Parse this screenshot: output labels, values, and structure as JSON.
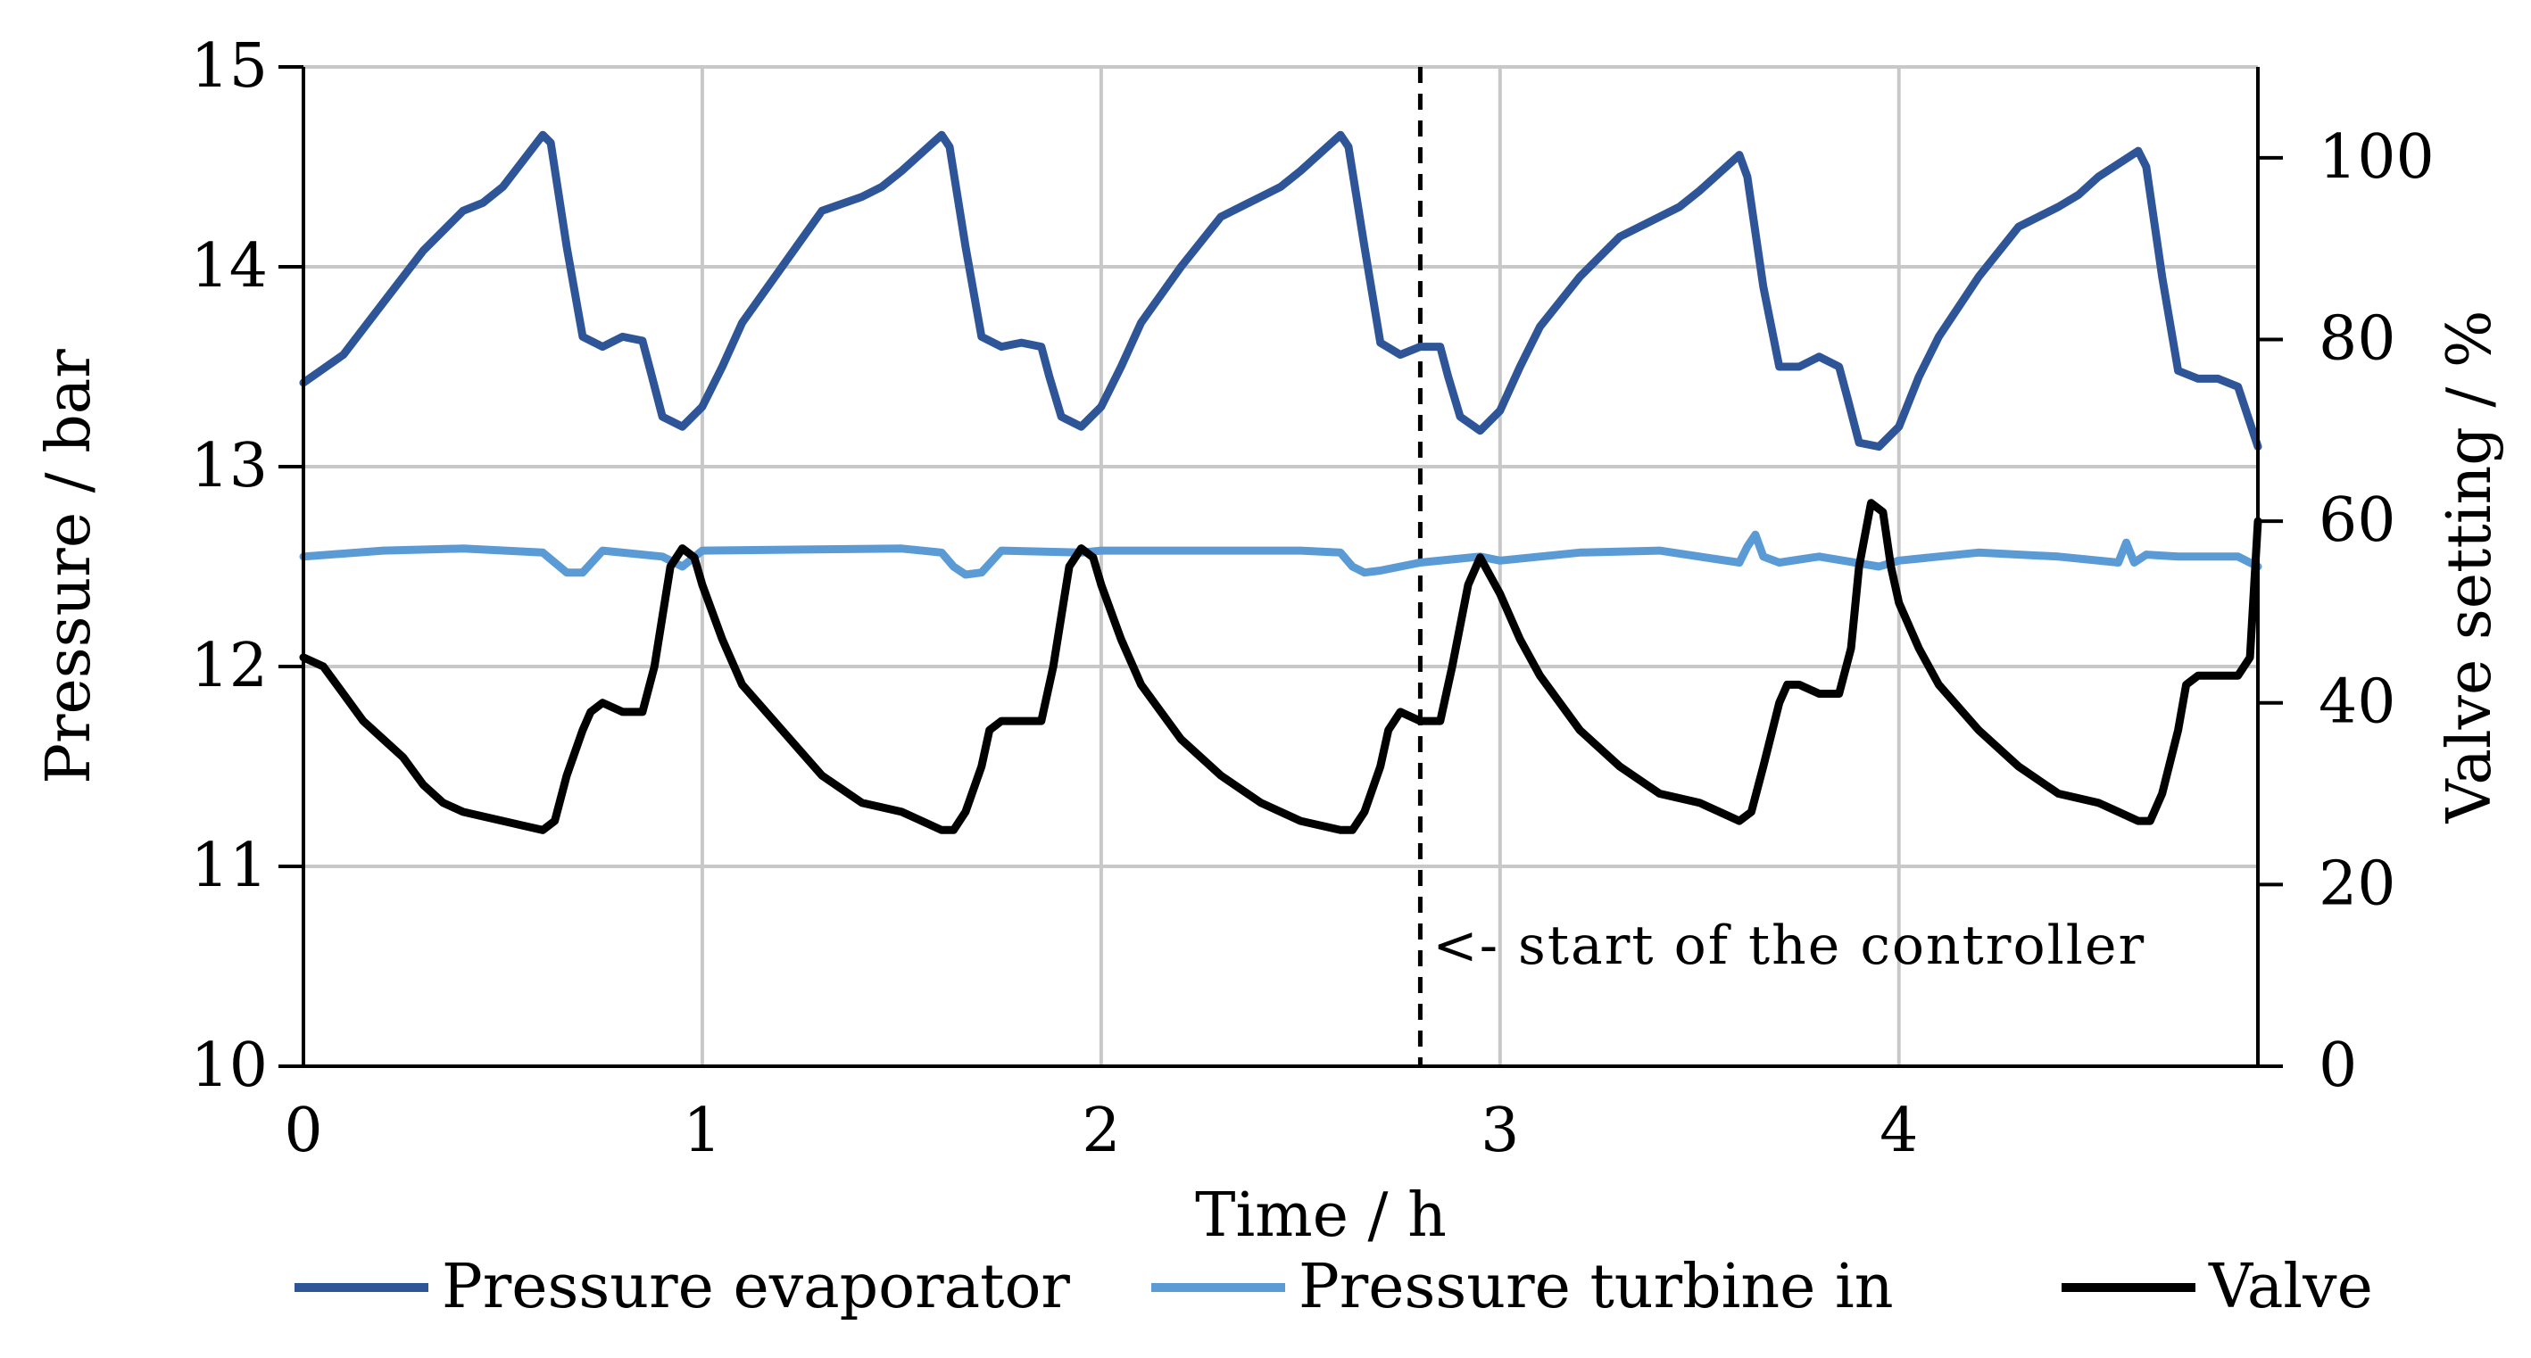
{
  "chart_data": {
    "type": "line",
    "title": "",
    "xlabel": "Time / h",
    "ylabel": "Pressure / bar",
    "y2label": "Valve setting / %",
    "xlim": [
      0,
      4.9
    ],
    "ylim": [
      10,
      15
    ],
    "y2lim": [
      0,
      110
    ],
    "xticks": [
      "0",
      "1",
      "2",
      "3",
      "4"
    ],
    "yticks": [
      "10",
      "11",
      "12",
      "13",
      "14",
      "15"
    ],
    "y2ticks": [
      "0",
      "20",
      "40",
      "60",
      "80",
      "100"
    ],
    "grid": true,
    "legend_position": "bottom",
    "annotation": {
      "text": "<- start of the controller",
      "x": 2.8
    },
    "series": [
      {
        "name": "Pressure evaporator",
        "axis": "left",
        "color": "#2e5597",
        "x": [
          0,
          0.1,
          0.2,
          0.3,
          0.4,
          0.45,
          0.5,
          0.6,
          0.62,
          0.66,
          0.7,
          0.75,
          0.8,
          0.85,
          0.87,
          0.9,
          0.95,
          1.0,
          1.05,
          1.1,
          1.2,
          1.3,
          1.4,
          1.45,
          1.5,
          1.6,
          1.62,
          1.66,
          1.7,
          1.75,
          1.8,
          1.85,
          1.87,
          1.9,
          1.95,
          2.0,
          2.05,
          2.1,
          2.2,
          2.3,
          2.4,
          2.45,
          2.5,
          2.6,
          2.62,
          2.66,
          2.7,
          2.75,
          2.8,
          2.85,
          2.87,
          2.9,
          2.95,
          3.0,
          3.05,
          3.1,
          3.2,
          3.3,
          3.4,
          3.45,
          3.5,
          3.6,
          3.62,
          3.66,
          3.7,
          3.75,
          3.8,
          3.85,
          3.87,
          3.9,
          3.95,
          4.0,
          4.05,
          4.1,
          4.2,
          4.3,
          4.4,
          4.45,
          4.5,
          4.6,
          4.62,
          4.66,
          4.7,
          4.75,
          4.8,
          4.85,
          4.9
        ],
        "y": [
          13.42,
          13.56,
          13.82,
          14.08,
          14.28,
          14.32,
          14.4,
          14.66,
          14.62,
          14.1,
          13.65,
          13.6,
          13.65,
          13.63,
          13.48,
          13.25,
          13.2,
          13.3,
          13.5,
          13.72,
          14.0,
          14.28,
          14.35,
          14.4,
          14.48,
          14.66,
          14.6,
          14.1,
          13.65,
          13.6,
          13.62,
          13.6,
          13.45,
          13.25,
          13.2,
          13.3,
          13.5,
          13.72,
          14.0,
          14.25,
          14.35,
          14.4,
          14.48,
          14.66,
          14.6,
          14.1,
          13.62,
          13.56,
          13.6,
          13.6,
          13.45,
          13.25,
          13.18,
          13.28,
          13.5,
          13.7,
          13.95,
          14.15,
          14.25,
          14.3,
          14.38,
          14.56,
          14.45,
          13.9,
          13.5,
          13.5,
          13.55,
          13.5,
          13.35,
          13.12,
          13.1,
          13.2,
          13.45,
          13.65,
          13.95,
          14.2,
          14.3,
          14.36,
          14.45,
          14.58,
          14.5,
          13.95,
          13.48,
          13.44,
          13.44,
          13.4,
          13.1
        ]
      },
      {
        "name": "Pressure turbine in",
        "axis": "left",
        "color": "#5b9bd5",
        "x": [
          0,
          0.2,
          0.4,
          0.6,
          0.63,
          0.66,
          0.7,
          0.75,
          0.9,
          0.95,
          1.0,
          1.5,
          1.6,
          1.63,
          1.66,
          1.7,
          1.75,
          1.95,
          2.0,
          2.5,
          2.6,
          2.63,
          2.66,
          2.7,
          2.8,
          2.95,
          3.0,
          3.2,
          3.4,
          3.6,
          3.62,
          3.64,
          3.66,
          3.7,
          3.8,
          3.95,
          4.0,
          4.2,
          4.4,
          4.55,
          4.57,
          4.59,
          4.62,
          4.7,
          4.85,
          4.9
        ],
        "y": [
          12.55,
          12.58,
          12.59,
          12.57,
          12.52,
          12.47,
          12.47,
          12.58,
          12.55,
          12.5,
          12.58,
          12.59,
          12.57,
          12.5,
          12.46,
          12.47,
          12.58,
          12.57,
          12.58,
          12.58,
          12.57,
          12.5,
          12.47,
          12.48,
          12.52,
          12.55,
          12.53,
          12.57,
          12.58,
          12.52,
          12.6,
          12.66,
          12.55,
          12.52,
          12.55,
          12.5,
          12.53,
          12.57,
          12.55,
          12.52,
          12.62,
          12.52,
          12.56,
          12.55,
          12.55,
          12.5
        ]
      },
      {
        "name": "Valve",
        "axis": "right",
        "color": "#000000",
        "x": [
          0,
          0.05,
          0.1,
          0.15,
          0.2,
          0.25,
          0.3,
          0.35,
          0.4,
          0.45,
          0.5,
          0.55,
          0.6,
          0.63,
          0.66,
          0.7,
          0.72,
          0.75,
          0.8,
          0.85,
          0.88,
          0.92,
          0.95,
          0.98,
          1.0,
          1.05,
          1.1,
          1.2,
          1.3,
          1.4,
          1.5,
          1.6,
          1.63,
          1.66,
          1.7,
          1.72,
          1.75,
          1.8,
          1.85,
          1.88,
          1.92,
          1.95,
          1.98,
          2.0,
          2.05,
          2.1,
          2.2,
          2.3,
          2.4,
          2.5,
          2.6,
          2.63,
          2.66,
          2.7,
          2.72,
          2.75,
          2.8,
          2.85,
          2.88,
          2.92,
          2.95,
          3.0,
          3.05,
          3.1,
          3.2,
          3.3,
          3.4,
          3.5,
          3.55,
          3.6,
          3.63,
          3.66,
          3.7,
          3.72,
          3.75,
          3.8,
          3.85,
          3.88,
          3.9,
          3.93,
          3.96,
          3.98,
          4.0,
          4.05,
          4.1,
          4.2,
          4.3,
          4.4,
          4.5,
          4.55,
          4.6,
          4.63,
          4.66,
          4.7,
          4.72,
          4.75,
          4.8,
          4.85,
          4.88,
          4.9
        ],
        "y": [
          45,
          44,
          41,
          38,
          36,
          34,
          31,
          29,
          28,
          27.5,
          27,
          26.5,
          26,
          27,
          32,
          37,
          39,
          40,
          39,
          39,
          44,
          55,
          57,
          56,
          53,
          47,
          42,
          37,
          32,
          29,
          28,
          26,
          26,
          28,
          33,
          37,
          38,
          38,
          38,
          44,
          55,
          57,
          56,
          53,
          47,
          42,
          36,
          32,
          29,
          27,
          26,
          26,
          28,
          33,
          37,
          39,
          38,
          38,
          44,
          53,
          56,
          52,
          47,
          43,
          37,
          33,
          30,
          29,
          28,
          27,
          28,
          33,
          40,
          42,
          42,
          41,
          41,
          46,
          55,
          62,
          61,
          55,
          51,
          46,
          42,
          37,
          33,
          30,
          29,
          28,
          27,
          27,
          30,
          37,
          42,
          43,
          43,
          43,
          45,
          60
        ]
      }
    ]
  }
}
